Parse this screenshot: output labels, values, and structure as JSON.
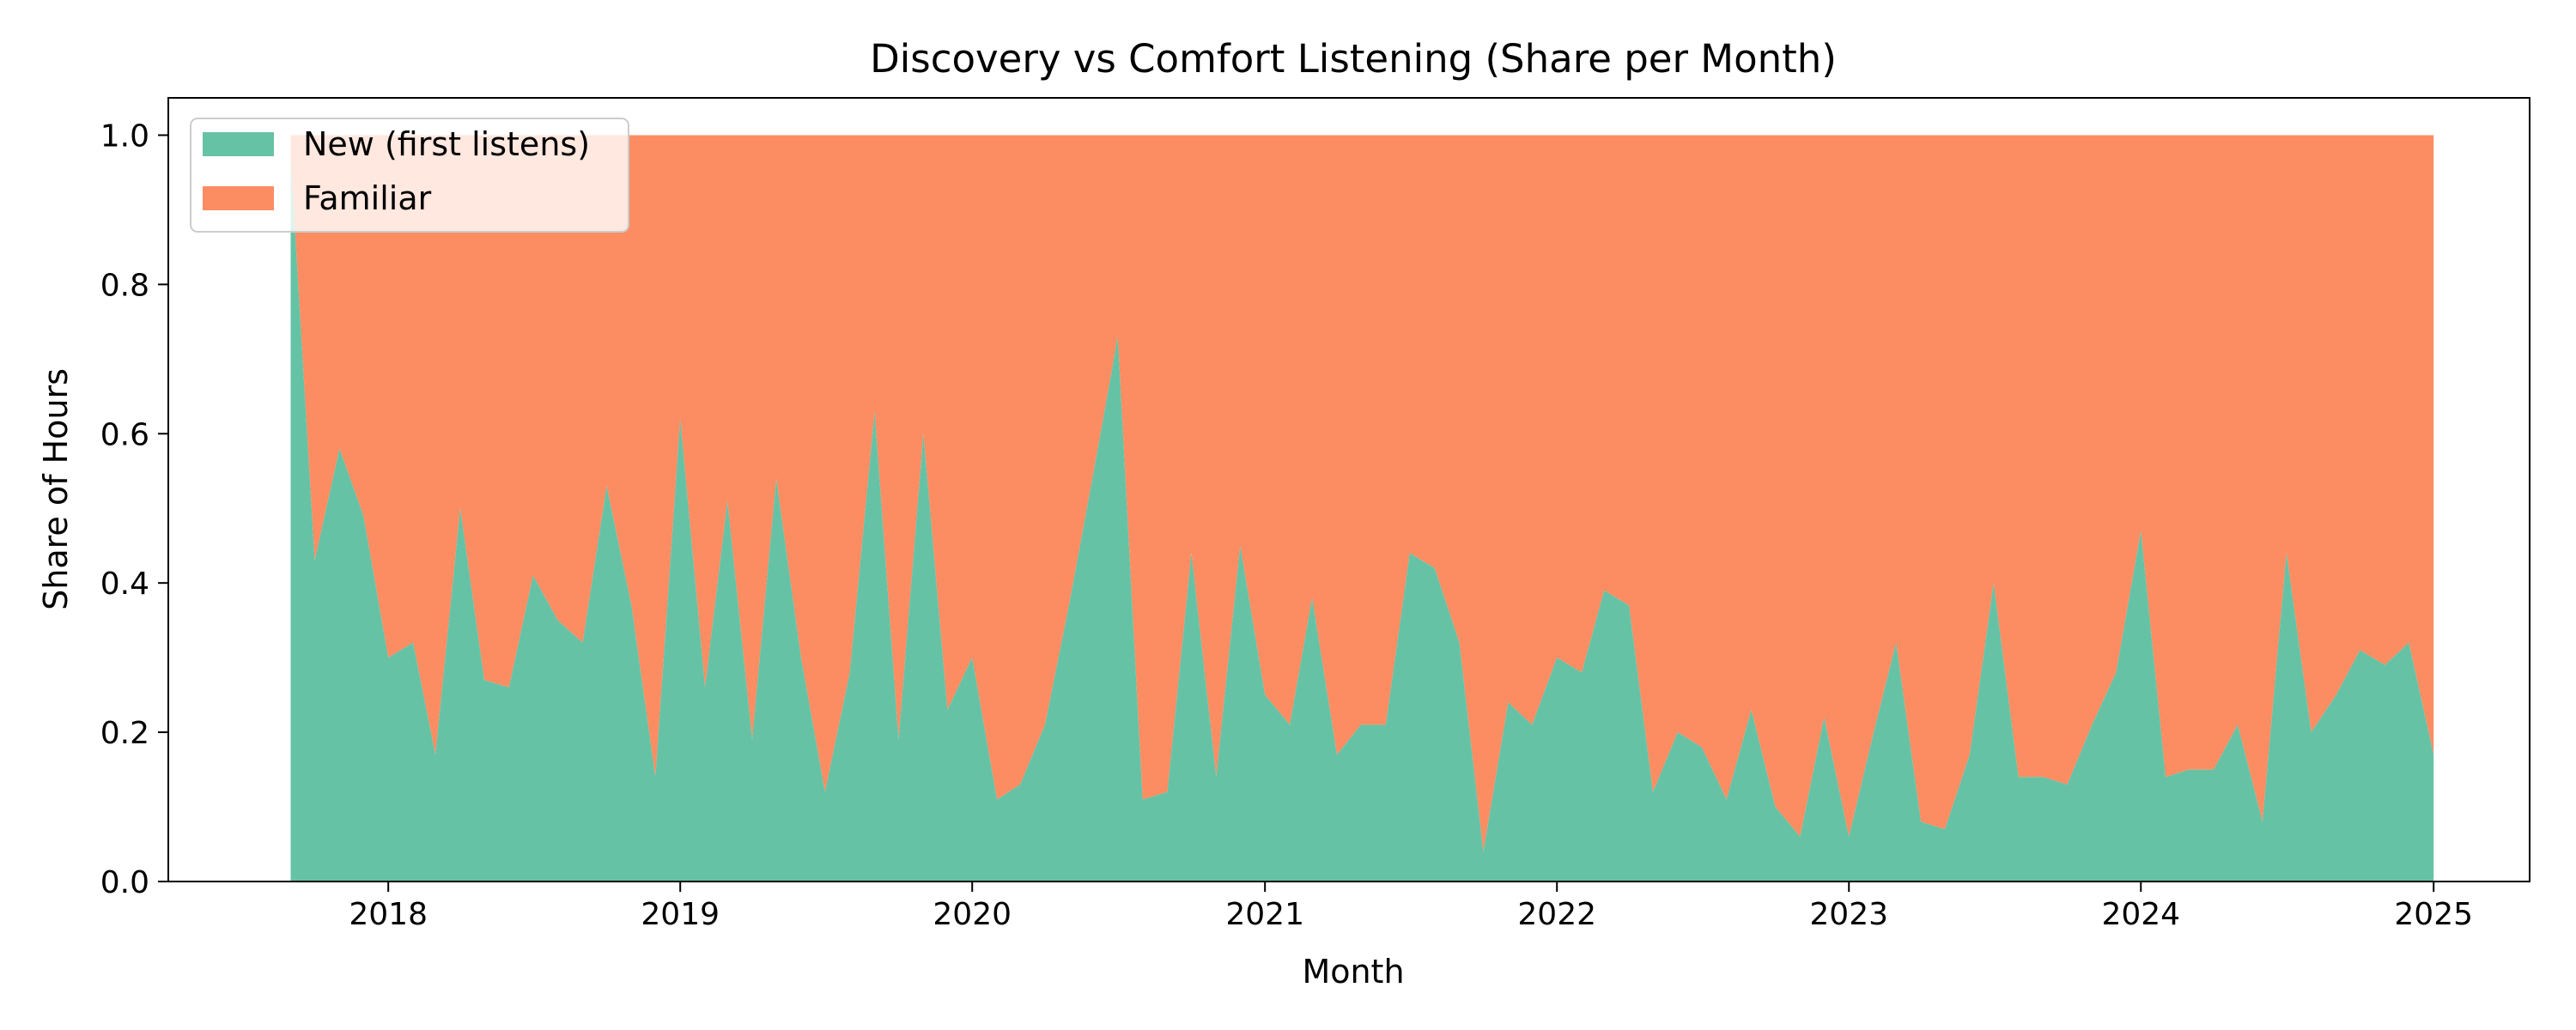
{
  "chart_data": {
    "type": "area",
    "stacked": true,
    "title": "Discovery vs Comfort Listening (Share per Month)",
    "xlabel": "Month",
    "ylabel": "Share of Hours",
    "xlim": [
      "2017-04-01",
      "2025-05-01"
    ],
    "ylim": [
      0,
      1.05
    ],
    "x_ticks": [
      "2018",
      "2019",
      "2020",
      "2021",
      "2022",
      "2023",
      "2024",
      "2025"
    ],
    "y_ticks": [
      "0.0",
      "0.2",
      "0.4",
      "0.6",
      "0.8",
      "1.0"
    ],
    "grid": false,
    "legend_position": "top-left",
    "colors": {
      "new": "#66c2a5",
      "familiar": "#fc8d62"
    },
    "x": [
      "2017-09",
      "2017-10",
      "2017-11",
      "2017-12",
      "2018-01",
      "2018-02",
      "2018-03",
      "2018-04",
      "2018-05",
      "2018-06",
      "2018-07",
      "2018-08",
      "2018-09",
      "2018-10",
      "2018-11",
      "2018-12",
      "2019-01",
      "2019-02",
      "2019-03",
      "2019-04",
      "2019-05",
      "2019-06",
      "2019-07",
      "2019-08",
      "2019-09",
      "2019-10",
      "2019-11",
      "2019-12",
      "2020-01",
      "2020-02",
      "2020-03",
      "2020-04",
      "2020-05",
      "2020-06",
      "2020-07",
      "2020-08",
      "2020-09",
      "2020-10",
      "2020-11",
      "2020-12",
      "2021-01",
      "2021-02",
      "2021-03",
      "2021-04",
      "2021-05",
      "2021-06",
      "2021-07",
      "2021-08",
      "2021-09",
      "2021-10",
      "2021-11",
      "2021-12",
      "2022-01",
      "2022-02",
      "2022-03",
      "2022-04",
      "2022-05",
      "2022-06",
      "2022-07",
      "2022-08",
      "2022-09",
      "2022-10",
      "2022-11",
      "2022-12",
      "2023-01",
      "2023-02",
      "2023-03",
      "2023-04",
      "2023-05",
      "2023-06",
      "2023-07",
      "2023-08",
      "2023-09",
      "2023-10",
      "2023-11",
      "2023-12",
      "2024-01",
      "2024-02",
      "2024-03",
      "2024-04",
      "2024-05",
      "2024-06",
      "2024-07",
      "2024-08",
      "2024-09",
      "2024-10",
      "2024-11",
      "2024-12",
      "2025-01"
    ],
    "series": [
      {
        "name": "New (first listens)",
        "values": [
          0.97,
          0.43,
          0.58,
          0.49,
          0.3,
          0.32,
          0.17,
          0.5,
          0.27,
          0.26,
          0.41,
          0.35,
          0.32,
          0.53,
          0.37,
          0.14,
          0.62,
          0.26,
          0.51,
          0.19,
          0.54,
          0.3,
          0.12,
          0.28,
          0.63,
          0.19,
          0.6,
          0.23,
          0.3,
          0.11,
          0.13,
          0.21,
          0.37,
          0.55,
          0.73,
          0.11,
          0.12,
          0.44,
          0.14,
          0.45,
          0.25,
          0.21,
          0.38,
          0.17,
          0.21,
          0.21,
          0.44,
          0.42,
          0.32,
          0.04,
          0.24,
          0.21,
          0.3,
          0.28,
          0.39,
          0.37,
          0.12,
          0.2,
          0.18,
          0.11,
          0.23,
          0.1,
          0.06,
          0.22,
          0.06,
          0.2,
          0.32,
          0.08,
          0.07,
          0.17,
          0.4,
          0.14,
          0.14,
          0.13,
          0.21,
          0.28,
          0.47,
          0.14,
          0.15,
          0.15,
          0.21,
          0.08,
          0.44,
          0.2,
          0.25,
          0.31,
          0.29,
          0.32,
          0.17
        ]
      },
      {
        "name": "Familiar",
        "values": [
          0.03,
          0.57,
          0.42,
          0.51,
          0.7,
          0.68,
          0.83,
          0.5,
          0.73,
          0.74,
          0.59,
          0.65,
          0.68,
          0.47,
          0.63,
          0.86,
          0.38,
          0.74,
          0.49,
          0.81,
          0.46,
          0.7,
          0.88,
          0.72,
          0.37,
          0.81,
          0.4,
          0.77,
          0.7,
          0.89,
          0.87,
          0.79,
          0.63,
          0.45,
          0.27,
          0.89,
          0.88,
          0.56,
          0.86,
          0.55,
          0.75,
          0.79,
          0.62,
          0.83,
          0.79,
          0.79,
          0.56,
          0.58,
          0.68,
          0.96,
          0.76,
          0.79,
          0.7,
          0.72,
          0.61,
          0.63,
          0.88,
          0.8,
          0.82,
          0.89,
          0.77,
          0.9,
          0.94,
          0.78,
          0.94,
          0.8,
          0.68,
          0.92,
          0.93,
          0.83,
          0.6,
          0.86,
          0.86,
          0.87,
          0.79,
          0.72,
          0.53,
          0.86,
          0.85,
          0.85,
          0.79,
          0.92,
          0.56,
          0.8,
          0.75,
          0.69,
          0.71,
          0.68,
          0.83
        ]
      }
    ]
  }
}
